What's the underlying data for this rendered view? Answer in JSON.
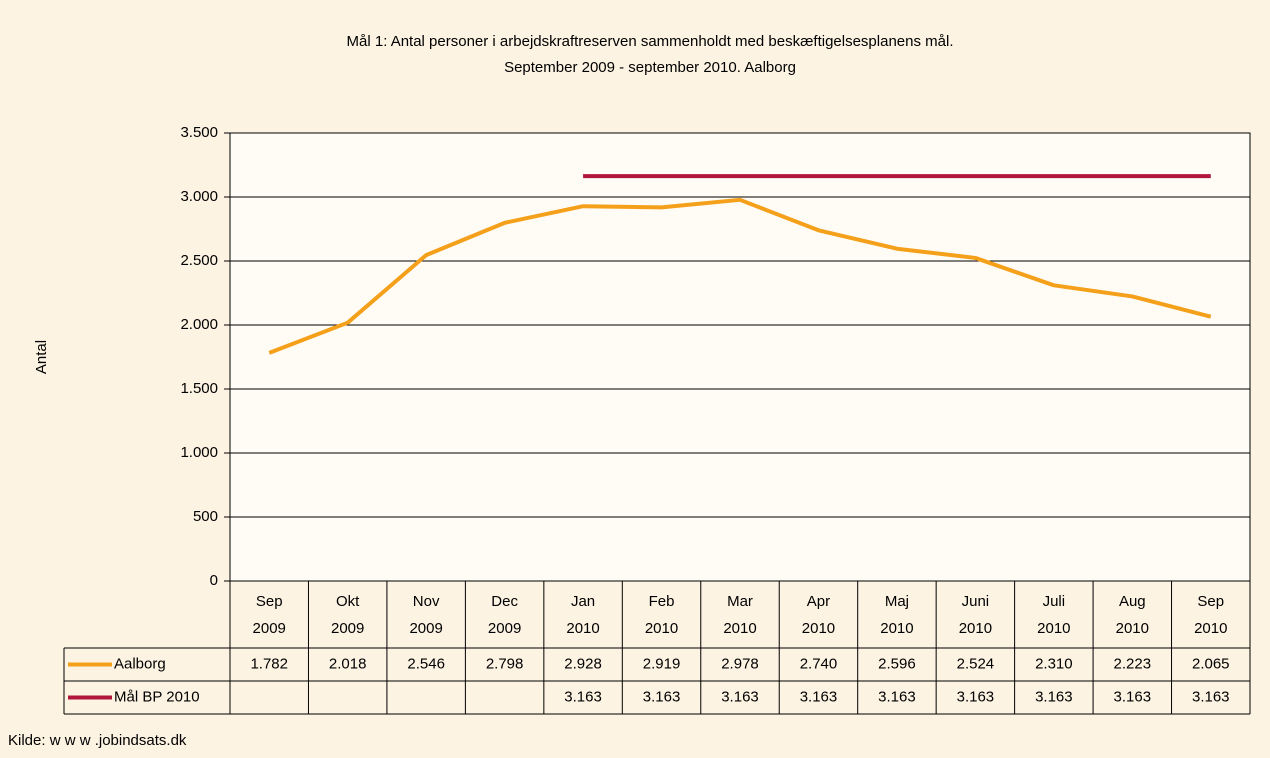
{
  "chart_data": {
    "type": "line",
    "title": "Mål 1: Antal personer i arbejdskraftreserven sammenholdt med beskæftigelsesplanens mål.",
    "subtitle": "September 2009 - september 2010. Aalborg",
    "y_label": "Antal",
    "source": "Kilde: w w w .jobindsats.dk",
    "categories": [
      [
        "Sep",
        "2009"
      ],
      [
        "Okt",
        "2009"
      ],
      [
        "Nov",
        "2009"
      ],
      [
        "Dec",
        "2009"
      ],
      [
        "Jan",
        "2010"
      ],
      [
        "Feb",
        "2010"
      ],
      [
        "Mar",
        "2010"
      ],
      [
        "Apr",
        "2010"
      ],
      [
        "Maj",
        "2010"
      ],
      [
        "Juni",
        "2010"
      ],
      [
        "Juli",
        "2010"
      ],
      [
        "Aug",
        "2010"
      ],
      [
        "Sep",
        "2010"
      ]
    ],
    "series": [
      {
        "name": "Aalborg",
        "color": "#f5a01a",
        "values": [
          1782,
          2018,
          2546,
          2798,
          2928,
          2919,
          2978,
          2740,
          2596,
          2524,
          2310,
          2223,
          2065
        ],
        "value_labels": [
          "1.782",
          "2.018",
          "2.546",
          "2.798",
          "2.928",
          "2.919",
          "2.978",
          "2.740",
          "2.596",
          "2.524",
          "2.310",
          "2.223",
          "2.065"
        ]
      },
      {
        "name": "Mål BP 2010",
        "color": "#b0163c",
        "values": [
          null,
          null,
          null,
          null,
          3163,
          3163,
          3163,
          3163,
          3163,
          3163,
          3163,
          3163,
          3163
        ],
        "value_labels": [
          null,
          null,
          null,
          null,
          "3.163",
          "3.163",
          "3.163",
          "3.163",
          "3.163",
          "3.163",
          "3.163",
          "3.163",
          "3.163"
        ]
      }
    ],
    "ylim": [
      0,
      3500
    ],
    "yticks": [
      0,
      500,
      {
        "value": 1000,
        "label": "1.000"
      },
      {
        "value": 1500,
        "label": "1.500"
      },
      {
        "value": 2000,
        "label": "2.000"
      },
      {
        "value": 2500,
        "label": "2.500"
      },
      {
        "value": 3000,
        "label": "3.000"
      },
      {
        "value": 3500,
        "label": "3.500"
      }
    ],
    "grid": true
  }
}
